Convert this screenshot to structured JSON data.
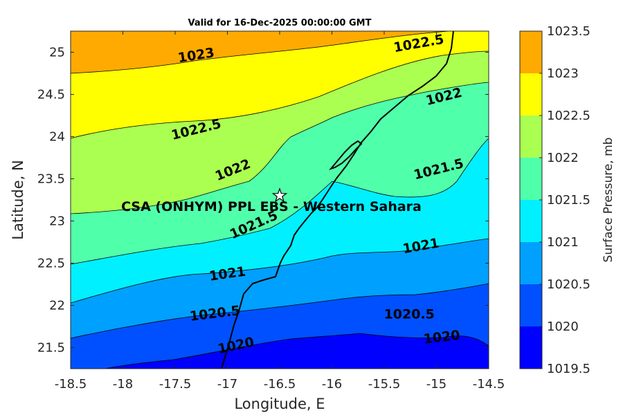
{
  "chart_data": {
    "type": "contour",
    "title": "Valid for 16-Dec-2025 00:00:00 GMT",
    "xlabel": "Longitude, E",
    "ylabel": "Latitude, N",
    "xlim": [
      -18.5,
      -14.5
    ],
    "ylim": [
      21.25,
      25.25
    ],
    "xticks": [
      "-18.5",
      "-18",
      "-17.5",
      "-17",
      "-16.5",
      "-16",
      "-15.5",
      "-15",
      "-14.5"
    ],
    "yticks": [
      "21.5",
      "22",
      "22.5",
      "23",
      "23.5",
      "24",
      "24.5",
      "25"
    ],
    "colorbar": {
      "label": "Surface Pressure, mb",
      "ticks": [
        "1019.5",
        "1020",
        "1020.5",
        "1021",
        "1021.5",
        "1022",
        "1022.5",
        "1023",
        "1023.5"
      ],
      "colors": [
        "#0000ff",
        "#0050ff",
        "#00a0ff",
        "#00f0ff",
        "#50ffaa",
        "#aaff50",
        "#ffff00",
        "#ffaa00",
        "#ff5000"
      ]
    },
    "contour_labels": [
      {
        "text": "1023",
        "lon": -17.3,
        "lat": 24.97,
        "angle": -9
      },
      {
        "text": "1022.5",
        "lon": -15.17,
        "lat": 25.11,
        "angle": -10
      },
      {
        "text": "1022.5",
        "lon": -17.3,
        "lat": 24.09,
        "angle": -14
      },
      {
        "text": "1022",
        "lon": -14.93,
        "lat": 24.48,
        "angle": -14
      },
      {
        "text": "1022",
        "lon": -16.95,
        "lat": 23.61,
        "angle": -22
      },
      {
        "text": "1021.5",
        "lon": -14.98,
        "lat": 23.62,
        "angle": -14
      },
      {
        "text": "1021.5",
        "lon": -16.75,
        "lat": 22.96,
        "angle": -24
      },
      {
        "text": "1021",
        "lon": -15.15,
        "lat": 22.71,
        "angle": -10
      },
      {
        "text": "1021",
        "lon": -17.0,
        "lat": 22.38,
        "angle": -8
      },
      {
        "text": "1020.5",
        "lon": -15.26,
        "lat": 21.9,
        "angle": 0
      },
      {
        "text": "1020.5",
        "lon": -17.12,
        "lat": 21.91,
        "angle": -7
      },
      {
        "text": "1020",
        "lon": -14.95,
        "lat": 21.63,
        "angle": -7
      },
      {
        "text": "1020",
        "lon": -16.92,
        "lat": 21.53,
        "angle": -12
      }
    ],
    "station": {
      "label": "CSA (ONHYM) PPL EBS  - Western Sahara",
      "lon": -16.5,
      "lat": 23.3
    }
  }
}
